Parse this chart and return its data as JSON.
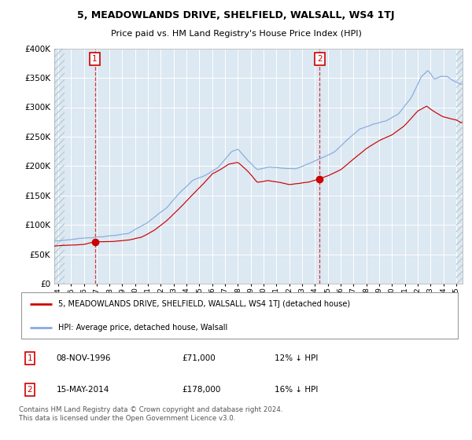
{
  "title": "5, MEADOWLANDS DRIVE, SHELFIELD, WALSALL, WS4 1TJ",
  "subtitle": "Price paid vs. HM Land Registry's House Price Index (HPI)",
  "ylim": [
    0,
    400000
  ],
  "xlim_start": 1993.7,
  "xlim_end": 2025.5,
  "bg_color": "#dce8f2",
  "grid_color": "#ffffff",
  "sale1_year": 1996.86,
  "sale1_price": 71000,
  "sale2_year": 2014.37,
  "sale2_price": 178000,
  "annotation1": [
    "08-NOV-1996",
    "£71,000",
    "12% ↓ HPI"
  ],
  "annotation2": [
    "15-MAY-2014",
    "£178,000",
    "16% ↓ HPI"
  ],
  "legend_property": "5, MEADOWLANDS DRIVE, SHELFIELD, WALSALL, WS4 1TJ (detached house)",
  "legend_hpi": "HPI: Average price, detached house, Walsall",
  "footer": "Contains HM Land Registry data © Crown copyright and database right 2024.\nThis data is licensed under the Open Government Licence v3.0.",
  "property_color": "#cc0000",
  "hpi_color": "#88aadd",
  "ytick_values": [
    0,
    50000,
    100000,
    150000,
    200000,
    250000,
    300000,
    350000,
    400000
  ]
}
